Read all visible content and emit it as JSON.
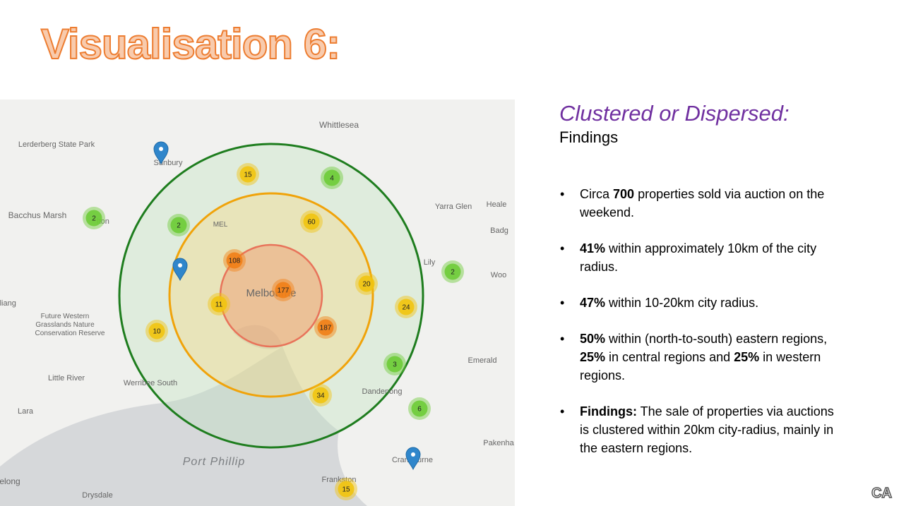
{
  "title": "Visualisation 6:",
  "heading": "Clustered or Dispersed:",
  "subheading": "Findings",
  "bullets": [
    [
      {
        "text": "Circa ",
        "bold": false
      },
      {
        "text": "700",
        "bold": true
      },
      {
        "text": " properties sold via auction on the weekend.",
        "bold": false
      }
    ],
    [
      {
        "text": "41%",
        "bold": true
      },
      {
        "text": " within approximately 10km of the city radius.",
        "bold": false
      }
    ],
    [
      {
        "text": "47%",
        "bold": true
      },
      {
        "text": " within 10-20km city radius.",
        "bold": false
      }
    ],
    [
      {
        "text": "50%",
        "bold": true
      },
      {
        "text": " within (north-to-south) eastern regions, ",
        "bold": false
      },
      {
        "text": "25%",
        "bold": true
      },
      {
        "text": " in central regions and ",
        "bold": false
      },
      {
        "text": "25%",
        "bold": true
      },
      {
        "text": " in western regions.",
        "bold": false
      }
    ],
    [
      {
        "text": "Findings:",
        "bold": true
      },
      {
        "text": " The sale of properties via auctions is clustered within 20km city-radius, mainly in the eastern regions.",
        "bold": false
      }
    ]
  ],
  "logo": "CA",
  "map": {
    "places": [
      "Whittlesea",
      "Lerderberg State Park",
      "Sunbury",
      "Bacchus Marsh",
      "lton",
      "MEL",
      "Yarra Glen",
      "Heale",
      "Badg",
      "Lily",
      "Woo",
      "iliang",
      "Future Western",
      "Grasslands Nature",
      "Conservation Reserve",
      "Melbourne",
      "Little River",
      "Werribee South",
      "Lara",
      "Emerald",
      "Dandenong",
      "Pakenha",
      "Port Phillip",
      "Cranbourne",
      "Frankston",
      "elong",
      "Drysdale"
    ],
    "clusters": [
      {
        "count": 15,
        "color": "#f1c40f"
      },
      {
        "count": 4,
        "color": "#6ecc39"
      },
      {
        "count": 2,
        "color": "#6ecc39"
      },
      {
        "count": 2,
        "color": "#6ecc39"
      },
      {
        "count": 60,
        "color": "#f1c40f"
      },
      {
        "count": 108,
        "color": "#f18017"
      },
      {
        "count": 177,
        "color": "#f18017"
      },
      {
        "count": 20,
        "color": "#f1c40f"
      },
      {
        "count": 2,
        "color": "#6ecc39"
      },
      {
        "count": 24,
        "color": "#f1c40f"
      },
      {
        "count": 11,
        "color": "#f1c40f"
      },
      {
        "count": 10,
        "color": "#f1c40f"
      },
      {
        "count": 187,
        "color": "#f18017"
      },
      {
        "count": 3,
        "color": "#6ecc39"
      },
      {
        "count": 34,
        "color": "#f1c40f"
      },
      {
        "count": 6,
        "color": "#6ecc39"
      },
      {
        "count": 15,
        "color": "#f1c40f"
      }
    ]
  }
}
